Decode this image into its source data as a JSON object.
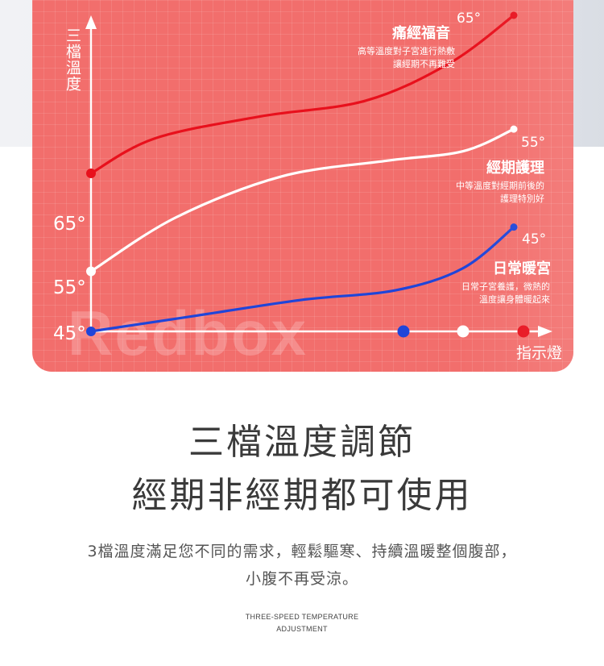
{
  "chart_data": {
    "type": "line",
    "ylabel": "三檔溫度",
    "xlabel": "指示燈",
    "y_ticks": [
      "65°",
      "55°",
      "45°"
    ],
    "watermark": "Redbox",
    "series": [
      {
        "name": "痛經福音",
        "description": [
          "高等溫度對子宮進行熱敷",
          "讓經期不再難受"
        ],
        "start_label": "65°",
        "end_label": "65°",
        "color": "#e8101c",
        "x": [
          0,
          0.15,
          0.4,
          0.65,
          0.85,
          1.0
        ],
        "values": [
          0.5,
          0.61,
          0.68,
          0.73,
          0.85,
          1.0
        ]
      },
      {
        "name": "經期護理",
        "description": [
          "中等溫度對經期前後的",
          "護理特別好"
        ],
        "start_label": "55°",
        "end_label": "55°",
        "color": "#ffffff",
        "x": [
          0,
          0.2,
          0.45,
          0.7,
          0.88,
          1.0
        ],
        "values": [
          0.19,
          0.36,
          0.49,
          0.54,
          0.57,
          0.64
        ]
      },
      {
        "name": "日常暖宮",
        "description": [
          "日常子宮養護，微熱的",
          "溫度讓身體暖起來"
        ],
        "start_label": "45°",
        "end_label": "45°",
        "color": "#1f45d9",
        "x": [
          0,
          0.25,
          0.5,
          0.72,
          0.88,
          1.0
        ],
        "values": [
          0.0,
          0.05,
          0.1,
          0.13,
          0.2,
          0.33
        ]
      }
    ],
    "indicator_dots": [
      {
        "color": "#1f45d9"
      },
      {
        "color": "#ffffff"
      },
      {
        "color": "#e8101c"
      }
    ]
  },
  "headline": {
    "line1": "三檔溫度調節",
    "line2": "經期非經期都可使用"
  },
  "description": {
    "line1": "3檔溫度滿足您不同的需求，輕鬆驅寒、持續溫暖整個腹部，",
    "line2": "小腹不再受涼。"
  },
  "english": {
    "line1": "THREE-SPEED TEMPERATURE",
    "line2": "ADJUSTMENT"
  }
}
